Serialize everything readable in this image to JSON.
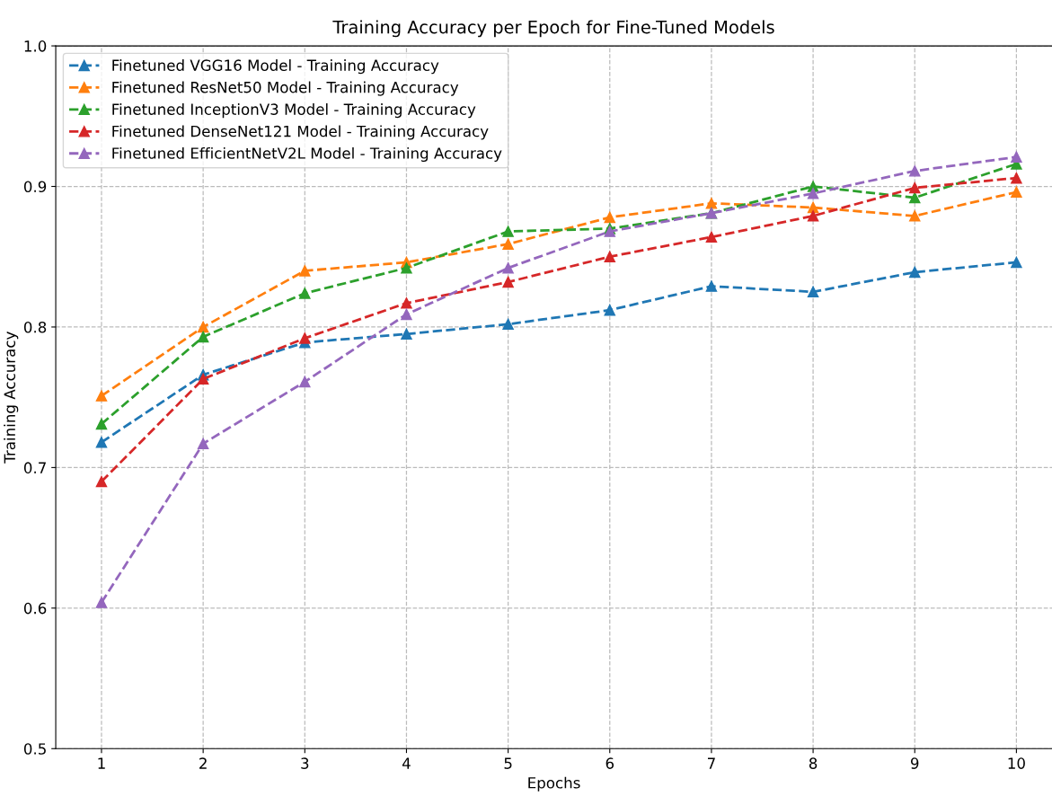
{
  "chart_data": {
    "type": "line",
    "title": "Training Accuracy per Epoch for Fine-Tuned Models",
    "xlabel": "Epochs",
    "ylabel": "Training Accuracy",
    "x": [
      1,
      2,
      3,
      4,
      5,
      6,
      7,
      8,
      9,
      10
    ],
    "series": [
      {
        "name": "Finetuned VGG16 Model - Training Accuracy",
        "color": "#1f77b4",
        "values": [
          0.718,
          0.766,
          0.789,
          0.795,
          0.802,
          0.812,
          0.829,
          0.825,
          0.839,
          0.846
        ]
      },
      {
        "name": "Finetuned ResNet50 Model - Training Accuracy",
        "color": "#ff7f0e",
        "values": [
          0.751,
          0.8,
          0.84,
          0.846,
          0.859,
          0.878,
          0.888,
          0.885,
          0.879,
          0.896
        ]
      },
      {
        "name": "Finetuned InceptionV3 Model - Training Accuracy",
        "color": "#2ca02c",
        "values": [
          0.731,
          0.793,
          0.824,
          0.842,
          0.868,
          0.87,
          0.881,
          0.9,
          0.892,
          0.916
        ]
      },
      {
        "name": "Finetuned DenseNet121 Model - Training Accuracy",
        "color": "#d62728",
        "values": [
          0.69,
          0.763,
          0.792,
          0.817,
          0.832,
          0.85,
          0.864,
          0.879,
          0.899,
          0.906
        ]
      },
      {
        "name": "Finetuned EfficientNetV2L Model - Training Accuracy",
        "color": "#9467bd",
        "values": [
          0.604,
          0.717,
          0.761,
          0.809,
          0.842,
          0.868,
          0.881,
          0.895,
          0.911,
          0.921
        ]
      }
    ],
    "xlim": [
      0.55,
      10.35
    ],
    "xticks": [
      1,
      2,
      3,
      4,
      5,
      6,
      7,
      8,
      9,
      10
    ],
    "ylim": [
      0.5,
      1.0
    ],
    "yticks": [
      0.5,
      0.6,
      0.7,
      0.8,
      0.9,
      {
        "value": 1.0,
        "label": "1.0"
      }
    ],
    "grid": true,
    "legend": "top left",
    "marker": "triangle",
    "line_style": "dashed"
  }
}
